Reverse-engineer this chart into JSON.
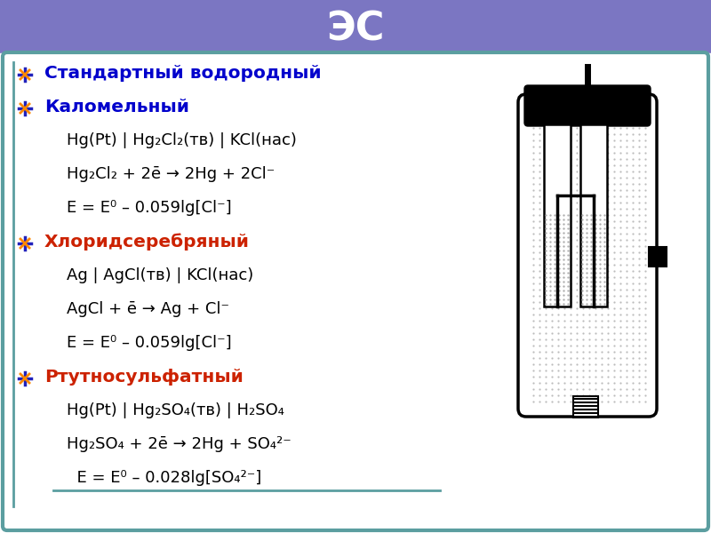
{
  "title": "ЭС",
  "title_color": "#ffffff",
  "header_bg": "#7b76c2",
  "body_bg": "#ffffff",
  "border_color": "#5b9ea0",
  "lines": [
    {
      "text": "Стандартный водородный",
      "bold": true,
      "color": "#0000cc",
      "bullet": true
    },
    {
      "text": "Каломельный",
      "bold": true,
      "color": "#0000cc",
      "bullet": true
    },
    {
      "text": "Hg(Pt) | Hg₂Cl₂(тв) | KCl(нас)",
      "bold": false,
      "color": "#000000",
      "bullet": false
    },
    {
      "text": "Hg₂Cl₂ + 2ē → 2Hg + 2Cl⁻",
      "bold": false,
      "color": "#000000",
      "bullet": false
    },
    {
      "text": "E = E⁰ – 0.059lg[Cl⁻]",
      "bold": false,
      "color": "#000000",
      "bullet": false
    },
    {
      "text": "Хлоридсеребряный",
      "bold": true,
      "color": "#cc2200",
      "bullet": true
    },
    {
      "text": "Ag | AgCl(тв) | KCl(нас)",
      "bold": false,
      "color": "#000000",
      "bullet": false
    },
    {
      "text": "AgCl + ē → Ag + Cl⁻",
      "bold": false,
      "color": "#000000",
      "bullet": false
    },
    {
      "text": "E = E⁰ – 0.059lg[Cl⁻]",
      "bold": false,
      "color": "#000000",
      "bullet": false
    },
    {
      "text": "Ртутносульфатный",
      "bold": true,
      "color": "#cc2200",
      "bullet": true
    },
    {
      "text": "Hg(Pt) | Hg₂SO₄(тв) | H₂SO₄",
      "bold": false,
      "color": "#000000",
      "bullet": false
    },
    {
      "text": "Hg₂SO₄ + 2ē → 2Hg + SO₄²⁻",
      "bold": false,
      "color": "#000000",
      "bullet": false
    },
    {
      "text": "  E = E⁰ – 0.028lg[SO₄²⁻]",
      "bold": false,
      "color": "#000000",
      "bullet": false
    }
  ]
}
